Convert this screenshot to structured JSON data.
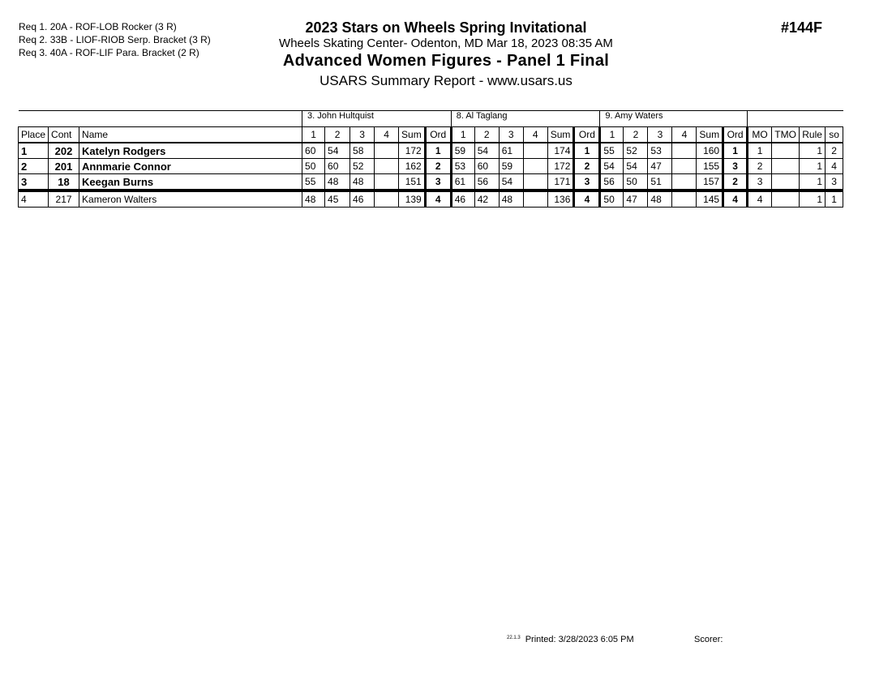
{
  "requirements": [
    "Req  1.  20A - ROF-LOB Rocker (3 R)",
    "Req  2.  33B - LIOF-RIOB Serp. Bracket (3 R)",
    "Req  3.  40A - ROF-LIF Para. Bracket (2 R)"
  ],
  "header": {
    "title": "2023 Stars on Wheels Spring Invitational",
    "venue": "Wheels Skating Center- Odenton, MD  Mar 18, 2023  08:35 AM",
    "event": "Advanced Women Figures - Panel 1 Final",
    "report": "USARS Summary Report - www.usars.us",
    "event_number": "#144F"
  },
  "judges": [
    "3.  John Hultquist",
    "8.  Al Taglang",
    "9.  Amy Waters"
  ],
  "columns": {
    "place": "Place",
    "cont": "Cont",
    "name": "Name",
    "scores": [
      "1",
      "2",
      "3",
      "4"
    ],
    "sum": "Sum",
    "ord": "Ord",
    "mo": "MO",
    "tmo": "TMO",
    "rule": "Rule",
    "so": "so"
  },
  "rows": [
    {
      "place": "1",
      "cont": "202",
      "name": "Katelyn Rodgers",
      "bold": true,
      "judges": [
        {
          "s": [
            "60",
            "54",
            "58",
            ""
          ],
          "sum": "172",
          "ord": "1"
        },
        {
          "s": [
            "59",
            "54",
            "61",
            ""
          ],
          "sum": "174",
          "ord": "1"
        },
        {
          "s": [
            "55",
            "52",
            "53",
            ""
          ],
          "sum": "160",
          "ord": "1"
        }
      ],
      "mo": "1",
      "tmo": "",
      "rule": "1",
      "so": "2"
    },
    {
      "place": "2",
      "cont": "201",
      "name": "Annmarie Connor",
      "bold": true,
      "judges": [
        {
          "s": [
            "50",
            "60",
            "52",
            ""
          ],
          "sum": "162",
          "ord": "2"
        },
        {
          "s": [
            "53",
            "60",
            "59",
            ""
          ],
          "sum": "172",
          "ord": "2"
        },
        {
          "s": [
            "54",
            "54",
            "47",
            ""
          ],
          "sum": "155",
          "ord": "3"
        }
      ],
      "mo": "2",
      "tmo": "",
      "rule": "1",
      "so": "4"
    },
    {
      "place": "3",
      "cont": "18",
      "name": "Keegan Burns",
      "bold": true,
      "judges": [
        {
          "s": [
            "55",
            "48",
            "48",
            ""
          ],
          "sum": "151",
          "ord": "3"
        },
        {
          "s": [
            "61",
            "56",
            "54",
            ""
          ],
          "sum": "171",
          "ord": "3"
        },
        {
          "s": [
            "56",
            "50",
            "51",
            ""
          ],
          "sum": "157",
          "ord": "2"
        }
      ],
      "mo": "3",
      "tmo": "",
      "rule": "1",
      "so": "3"
    },
    {
      "place": "4",
      "cont": "217",
      "name": "Kameron Walters",
      "bold": false,
      "judges": [
        {
          "s": [
            "48",
            "45",
            "46",
            ""
          ],
          "sum": "139",
          "ord": "4"
        },
        {
          "s": [
            "46",
            "42",
            "48",
            ""
          ],
          "sum": "136",
          "ord": "4"
        },
        {
          "s": [
            "50",
            "47",
            "48",
            ""
          ],
          "sum": "145",
          "ord": "4"
        }
      ],
      "mo": "4",
      "tmo": "",
      "rule": "1",
      "so": "1"
    }
  ],
  "footer": {
    "code": "22.1.3",
    "printed": "Printed:  3/28/2023  6:05 PM",
    "scorer": "Scorer:"
  }
}
